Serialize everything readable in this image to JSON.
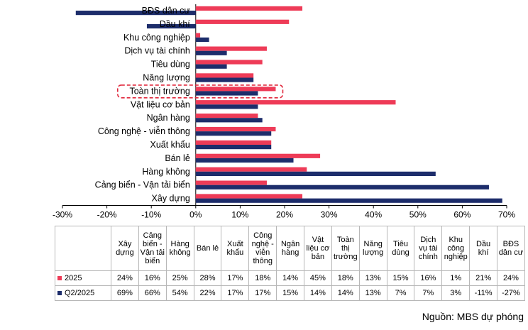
{
  "chart_data": {
    "type": "bar",
    "orientation": "horizontal",
    "categories": [
      "BĐS dân cư",
      "Dầu khí",
      "Khu công nghiệp",
      "Dịch vụ tài chính",
      "Tiêu dùng",
      "Năng lượng",
      "Toàn thị trường",
      "Vật liệu cơ bản",
      "Ngân hàng",
      "Công nghệ - viễn thông",
      "Xuất khẩu",
      "Bán lẻ",
      "Hàng không",
      "Cảng biển - Vận tải biển",
      "Xây dựng"
    ],
    "highlight_category": "Toàn thị trường",
    "series": [
      {
        "name": "2025",
        "color": "#ee3b57",
        "values": [
          24,
          21,
          1,
          16,
          15,
          13,
          18,
          45,
          14,
          18,
          17,
          28,
          25,
          16,
          24
        ]
      },
      {
        "name": "Q2/2025",
        "color": "#1d2d6b",
        "values": [
          -27,
          -11,
          3,
          7,
          7,
          13,
          14,
          14,
          15,
          17,
          17,
          22,
          54,
          66,
          69
        ]
      }
    ],
    "xlim": [
      -30,
      70
    ],
    "xticks": [
      "-30%",
      "-20%",
      "-10%",
      "0%",
      "10%",
      "20%",
      "30%",
      "40%",
      "50%",
      "60%",
      "70%"
    ]
  },
  "table": {
    "headers": [
      "Xây dựng",
      "Cảng biển - Vận tải biển",
      "Hàng không",
      "Bán lẻ",
      "Xuất khẩu",
      "Công nghệ - viễn thông",
      "Ngân hàng",
      "Vật liệu cơ bản",
      "Toàn thị trường",
      "Năng lượng",
      "Tiêu dùng",
      "Dịch vụ tài chính",
      "Khu công nghiệp",
      "Dầu khí",
      "BĐS dân cư"
    ],
    "rows": [
      {
        "label": "2025",
        "color": "#ee3b57",
        "cells": [
          "24%",
          "16%",
          "25%",
          "28%",
          "17%",
          "18%",
          "14%",
          "45%",
          "18%",
          "13%",
          "15%",
          "16%",
          "1%",
          "21%",
          "24%"
        ]
      },
      {
        "label": "Q2/2025",
        "color": "#1d2d6b",
        "cells": [
          "69%",
          "66%",
          "54%",
          "22%",
          "17%",
          "17%",
          "15%",
          "14%",
          "14%",
          "13%",
          "7%",
          "7%",
          "3%",
          "-11%",
          "-27%"
        ]
      }
    ]
  },
  "source": "Nguồn: MBS dự phóng"
}
